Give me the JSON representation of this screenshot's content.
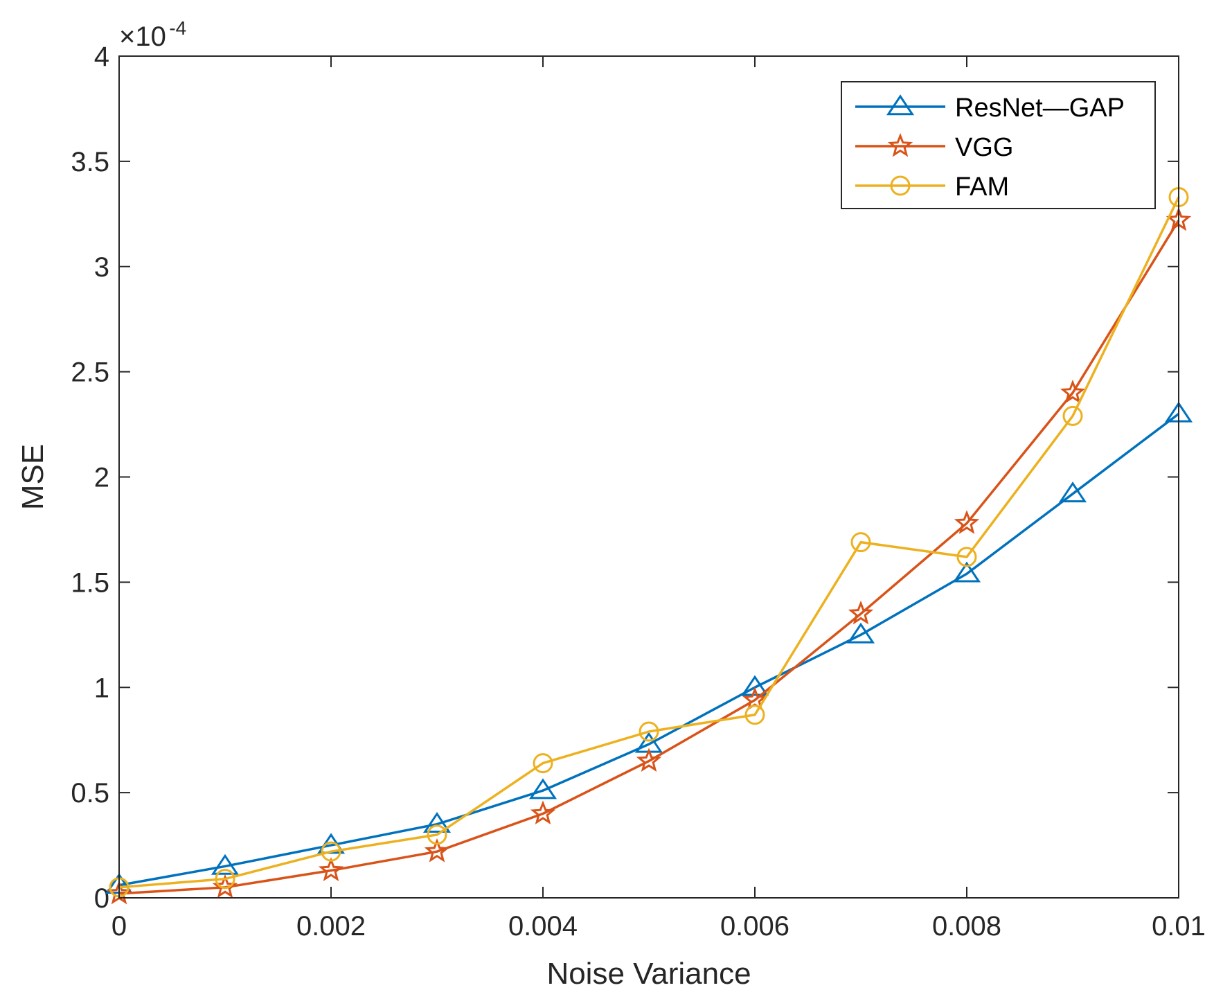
{
  "chart_data": {
    "type": "line",
    "title": "",
    "xlabel": "Noise Variance",
    "ylabel": "MSE",
    "exponent_label": {
      "base": "×10",
      "power": "-4"
    },
    "xlim": [
      0,
      0.01
    ],
    "ylim": [
      0,
      4
    ],
    "grid": false,
    "legend_position": "top-right",
    "x": [
      0,
      0.001,
      0.002,
      0.003,
      0.004,
      0.005,
      0.006,
      0.007,
      0.008,
      0.009,
      0.01
    ],
    "x_ticks": [
      0,
      0.002,
      0.004,
      0.006,
      0.008,
      0.01
    ],
    "x_tick_labels": [
      "0",
      "0.002",
      "0.004",
      "0.006",
      "0.008",
      "0.01"
    ],
    "y_ticks": [
      0,
      0.5,
      1,
      1.5,
      2,
      2.5,
      3,
      3.5,
      4
    ],
    "y_tick_labels": [
      "0",
      "0.5",
      "1",
      "1.5",
      "2",
      "2.5",
      "3",
      "3.5",
      "4"
    ],
    "series": [
      {
        "name": "ResNet—GAP",
        "color": "#0072BD",
        "marker": "triangle",
        "values": [
          0.06,
          0.15,
          0.25,
          0.35,
          0.51,
          0.73,
          1.0,
          1.25,
          1.54,
          1.92,
          2.3
        ]
      },
      {
        "name": "VGG",
        "color": "#D95319",
        "marker": "star",
        "values": [
          0.02,
          0.05,
          0.13,
          0.22,
          0.4,
          0.65,
          0.94,
          1.35,
          1.78,
          2.4,
          3.22
        ]
      },
      {
        "name": "FAM",
        "color": "#EDB120",
        "marker": "circle",
        "values": [
          0.05,
          0.09,
          0.22,
          0.3,
          0.64,
          0.79,
          0.87,
          1.69,
          1.62,
          2.29,
          3.33
        ]
      }
    ]
  }
}
